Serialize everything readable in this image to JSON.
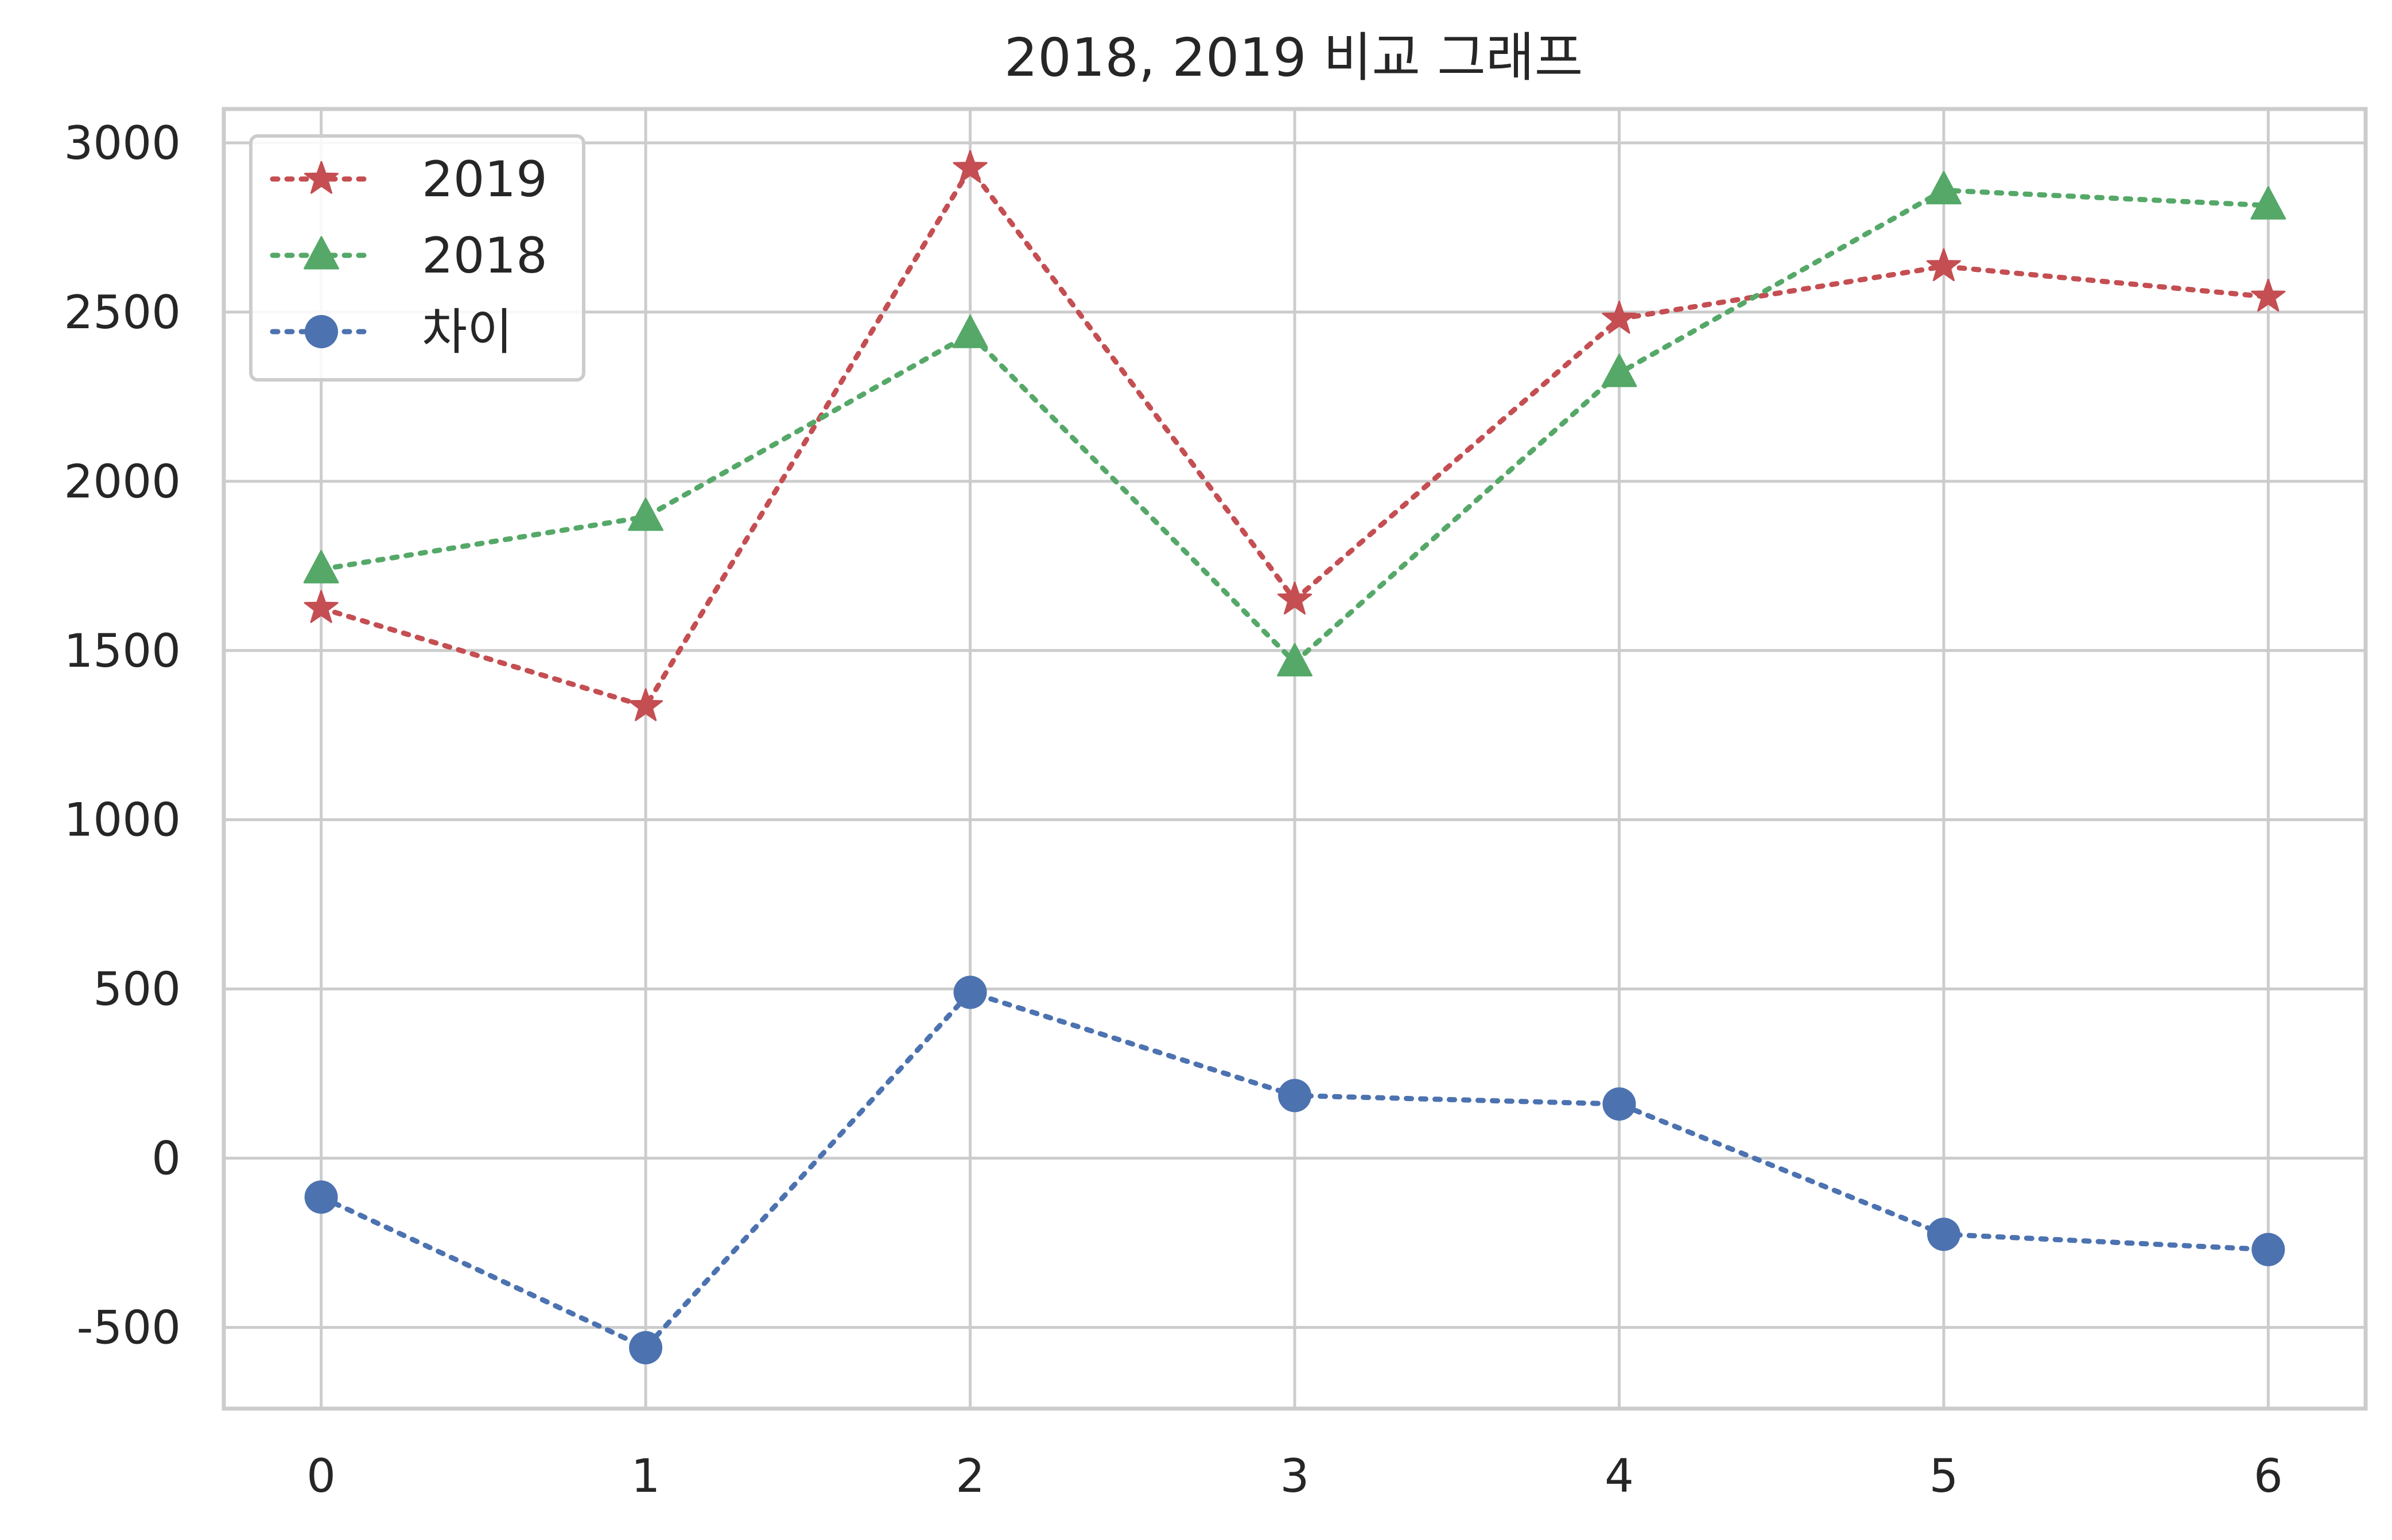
{
  "chart_data": {
    "type": "line",
    "title": "2018, 2019 비교 그래프",
    "xlabel": "",
    "ylabel": "",
    "x": [
      0,
      1,
      2,
      3,
      4,
      5,
      6
    ],
    "x_tick_labels": [
      "0",
      "1",
      "2",
      "3",
      "4",
      "5",
      "6"
    ],
    "xlim": [
      -0.3,
      6.3
    ],
    "y_ticks": [
      -500,
      0,
      500,
      1000,
      1500,
      2000,
      2500,
      3000
    ],
    "y_tick_labels": [
      "-500",
      "0",
      "500",
      "1000",
      "1500",
      "2000",
      "2500",
      "3000"
    ],
    "ylim": [
      -740,
      3100
    ],
    "grid": true,
    "legend_position": "top-left",
    "series": [
      {
        "name": "2019",
        "values": [
          1625,
          1335,
          2925,
          1650,
          2480,
          2635,
          2545
        ],
        "color": "#c44e52",
        "marker": "star",
        "line_style": "dotted"
      },
      {
        "name": "2018",
        "values": [
          1740,
          1895,
          2435,
          1465,
          2320,
          2860,
          2815
        ],
        "color": "#55a868",
        "marker": "triangle",
        "line_style": "dotted"
      },
      {
        "name": "차이",
        "values": [
          -115,
          -560,
          490,
          185,
          160,
          -225,
          -270
        ],
        "color": "#4c72b0",
        "marker": "circle",
        "line_style": "dotted"
      }
    ]
  }
}
